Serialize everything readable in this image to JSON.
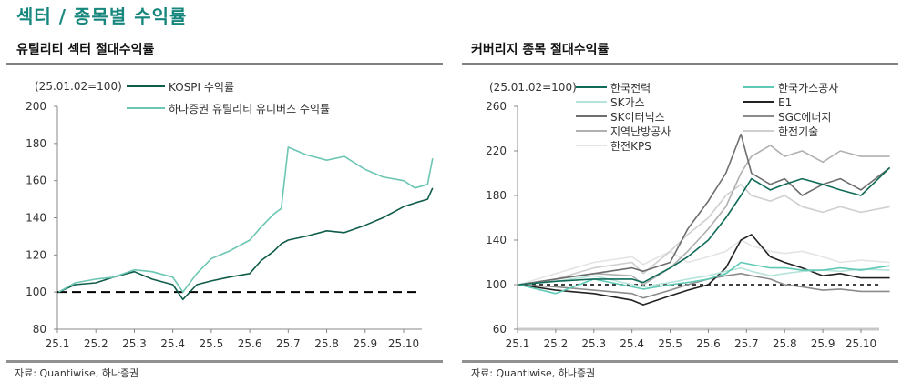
{
  "page_title": "섹터 / 종목별 수익률",
  "chart_data": [
    {
      "type": "line",
      "title": "유틸리티 섹터 절대수익률",
      "note": "(25.01.02=100)",
      "source": "자료: Quantiwise, 하나증권",
      "ylim": [
        80,
        200
      ],
      "yticks": [
        80,
        100,
        120,
        140,
        160,
        180,
        200
      ],
      "xticks": [
        "25.1",
        "25.2",
        "25.3",
        "25.4",
        "25.5",
        "25.6",
        "25.7",
        "25.8",
        "25.9",
        "25.10"
      ],
      "reference_line": {
        "y": 100,
        "style": "dashed",
        "color": "#000000"
      },
      "legend_placement": "top",
      "dates": [
        "2025-01-02",
        "2025-01-15",
        "2025-02-01",
        "2025-02-15",
        "2025-03-01",
        "2025-03-15",
        "2025-04-01",
        "2025-04-09",
        "2025-04-20",
        "2025-05-01",
        "2025-05-15",
        "2025-06-01",
        "2025-06-10",
        "2025-06-20",
        "2025-06-26",
        "2025-07-01",
        "2025-07-15",
        "2025-08-01",
        "2025-08-15",
        "2025-09-01",
        "2025-09-15",
        "2025-10-01",
        "2025-10-10",
        "2025-10-20",
        "2025-10-24"
      ],
      "series": [
        {
          "name": "KOSPI 수익률",
          "color": "#0f5c4a",
          "values": [
            100,
            104,
            105,
            108,
            111,
            107,
            104,
            96,
            104,
            106,
            108,
            110,
            117,
            122,
            126,
            128,
            130,
            133,
            132,
            136,
            140,
            146,
            148,
            150,
            156
          ]
        },
        {
          "name": "하나증권 유틸리티 유니버스 수익률",
          "color": "#6cc6b4",
          "values": [
            100,
            105,
            107,
            108,
            112,
            111,
            108,
            100,
            110,
            118,
            122,
            128,
            135,
            142,
            145,
            178,
            174,
            171,
            173,
            166,
            162,
            160,
            156,
            158,
            172
          ]
        }
      ]
    },
    {
      "type": "line",
      "title": "커버리지 종목 절대수익률",
      "note": "(25.01.02=100)",
      "source": "자료: Quantiwise, 하나증권",
      "ylim": [
        60,
        260
      ],
      "yticks": [
        60,
        100,
        140,
        180,
        220,
        260
      ],
      "xticks": [
        "25.1",
        "25.2",
        "25.3",
        "25.4",
        "25.5",
        "25.6",
        "25.7",
        "25.8",
        "25.9",
        "25.10"
      ],
      "reference_line": {
        "y": 100,
        "style": "dotted",
        "color": "#000000"
      },
      "legend_placement": "top",
      "dates": [
        "2025-01-02",
        "2025-02-01",
        "2025-03-01",
        "2025-04-01",
        "2025-04-10",
        "2025-05-01",
        "2025-05-15",
        "2025-06-01",
        "2025-06-15",
        "2025-06-27",
        "2025-07-05",
        "2025-07-20",
        "2025-08-01",
        "2025-08-15",
        "2025-09-01",
        "2025-09-15",
        "2025-10-01",
        "2025-10-24"
      ],
      "series": [
        {
          "name": "한국전력",
          "color": "#0f6b58",
          "values": [
            100,
            103,
            105,
            105,
            102,
            115,
            125,
            140,
            160,
            180,
            195,
            185,
            190,
            195,
            190,
            185,
            180,
            205
          ]
        },
        {
          "name": "한국가스공사",
          "color": "#5fc9b5",
          "values": [
            100,
            92,
            105,
            98,
            96,
            100,
            102,
            105,
            110,
            120,
            118,
            115,
            115,
            113,
            113,
            115,
            113,
            117
          ]
        },
        {
          "name": "SK가스",
          "color": "#b6e3da",
          "values": [
            100,
            103,
            108,
            100,
            98,
            102,
            105,
            108,
            112,
            115,
            112,
            108,
            110,
            112,
            113,
            112,
            114,
            113
          ]
        },
        {
          "name": "E1",
          "color": "#222222",
          "values": [
            100,
            95,
            92,
            86,
            82,
            90,
            95,
            100,
            115,
            140,
            145,
            125,
            120,
            115,
            108,
            110,
            106,
            106
          ]
        },
        {
          "name": "SK이터닉스",
          "color": "#6e6e6e",
          "values": [
            100,
            105,
            110,
            115,
            112,
            120,
            150,
            175,
            200,
            235,
            200,
            190,
            195,
            180,
            190,
            195,
            185,
            205
          ]
        },
        {
          "name": "SGC에너지",
          "color": "#8c8c8c",
          "values": [
            100,
            98,
            95,
            92,
            88,
            95,
            100,
            105,
            108,
            110,
            108,
            105,
            100,
            98,
            95,
            96,
            94,
            94
          ]
        },
        {
          "name": "지역난방공사",
          "color": "#b0b0b0",
          "values": [
            100,
            105,
            110,
            108,
            100,
            115,
            130,
            150,
            170,
            200,
            215,
            225,
            215,
            220,
            210,
            220,
            215,
            215
          ]
        },
        {
          "name": "한전기술",
          "color": "#cfcfcf",
          "values": [
            100,
            105,
            115,
            120,
            110,
            130,
            145,
            160,
            180,
            190,
            180,
            175,
            180,
            170,
            165,
            170,
            165,
            170
          ]
        },
        {
          "name": "한전KPS",
          "color": "#e4e4e4",
          "values": [
            100,
            110,
            120,
            125,
            118,
            130,
            120,
            125,
            130,
            140,
            135,
            130,
            128,
            130,
            125,
            120,
            122,
            120
          ]
        }
      ]
    }
  ]
}
